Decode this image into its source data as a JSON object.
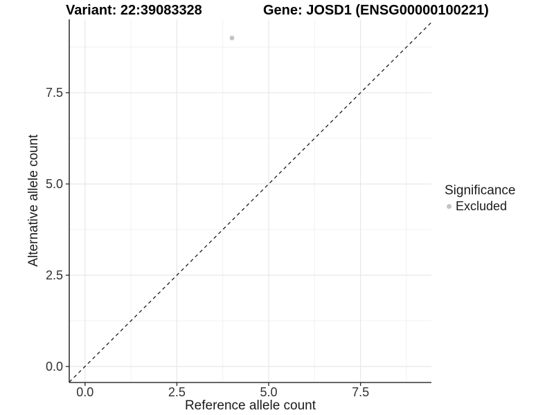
{
  "header": {
    "variant": "Variant: 22:39083328",
    "gene": "Gene: JOSD1 (ENSG00000100221)"
  },
  "chart_data": {
    "type": "scatter",
    "title": "Variant: 22:39083328 | Gene: JOSD1 (ENSG00000100221)",
    "xlabel": "Reference allele count",
    "ylabel": "Alternative allele count",
    "xlim": [
      -0.43,
      9.43
    ],
    "ylim": [
      -0.44,
      9.51
    ],
    "x_major_ticks": [
      0,
      2.5,
      5,
      7.5
    ],
    "x_tick_labels": [
      "0.0",
      "2.5",
      "5.0",
      "7.5"
    ],
    "y_major_ticks": [
      0,
      2.5,
      5,
      7.5
    ],
    "y_tick_labels": [
      "0.0",
      "2.5",
      "5.0",
      "7.5"
    ],
    "x_minor_ticks": [
      1.25,
      3.75,
      6.25,
      8.75
    ],
    "y_minor_ticks": [
      1.25,
      3.75,
      6.25,
      8.75
    ],
    "grid": true,
    "legend_position": "right",
    "reference_line": {
      "slope": 1,
      "intercept": 0,
      "style": "dashed",
      "color": "#1a1a1a"
    },
    "series": [
      {
        "name": "Excluded",
        "color": "#c4c4c4",
        "points": [
          {
            "x": 4,
            "y": 9
          }
        ],
        "point_radius": 3.4
      }
    ],
    "legend": {
      "title": "Significance",
      "items": [
        {
          "label": "Excluded",
          "color": "#c4c4c4"
        }
      ]
    }
  },
  "palette": {
    "axis_line": "#333333",
    "tick_mark": "#333333",
    "grid_major": "#e7e7e7",
    "grid_minor": "#f1f1f1",
    "excluded_point": "#c4c4c4",
    "dashed_line": "#1a1a1a"
  }
}
